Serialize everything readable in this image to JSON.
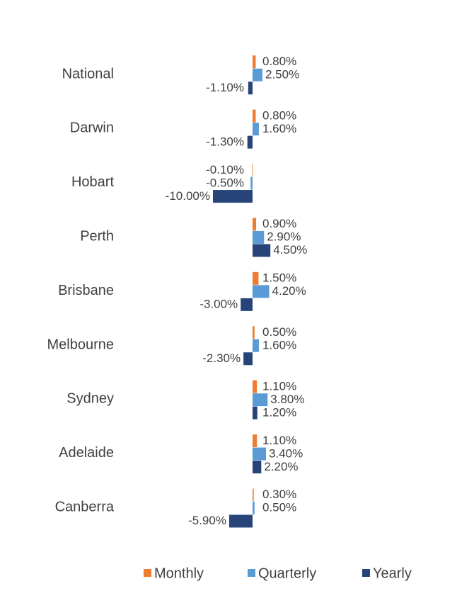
{
  "chart_data": {
    "type": "bar",
    "orientation": "horizontal",
    "categories": [
      "National",
      "Darwin",
      "Hobart",
      "Perth",
      "Brisbane",
      "Melbourne",
      "Sydney",
      "Adelaide",
      "Canberra"
    ],
    "series": [
      {
        "name": "Monthly",
        "color": "#ED7D31",
        "values": [
          0.8,
          0.8,
          -0.1,
          0.9,
          1.5,
          0.5,
          1.1,
          1.1,
          0.3
        ],
        "value_labels": [
          "0.80%",
          "0.80%",
          "-0.10%",
          "0.90%",
          "1.50%",
          "0.50%",
          "1.10%",
          "1.10%",
          "0.30%"
        ]
      },
      {
        "name": "Quarterly",
        "color": "#5B9BD5",
        "values": [
          2.5,
          1.6,
          -0.5,
          2.9,
          4.2,
          1.6,
          3.8,
          3.4,
          0.5
        ],
        "value_labels": [
          "2.50%",
          "1.60%",
          "-0.50%",
          "2.90%",
          "4.20%",
          "1.60%",
          "3.80%",
          "3.40%",
          "0.50%"
        ]
      },
      {
        "name": "Yearly",
        "color": "#264478",
        "values": [
          -1.1,
          -1.3,
          -10.0,
          4.5,
          -3.0,
          -2.3,
          1.2,
          2.2,
          -5.9
        ],
        "value_labels": [
          "-1.10%",
          "-1.30%",
          "-10.00%",
          "4.50%",
          "-3.00%",
          "-2.30%",
          "1.20%",
          "2.20%",
          "-5.90%"
        ]
      }
    ],
    "legend": "bottom"
  }
}
